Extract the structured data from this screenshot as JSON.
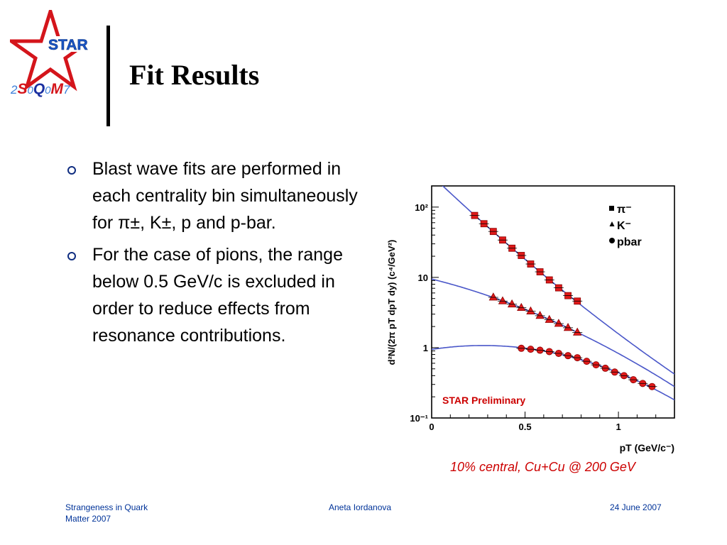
{
  "logo": {
    "star_text": "STAR",
    "conf_text_parts": [
      "2",
      "S",
      "0",
      "Q",
      "0",
      "M",
      "7"
    ]
  },
  "slide": {
    "title": "Fit Results"
  },
  "bullets": [
    "Blast wave fits are performed in each centrality bin simultaneously for π±, K±, p and p-bar.",
    "For the case of pions, the range below 0.5 GeV/c is excluded in order to reduce effects from resonance contributions."
  ],
  "chart_data": {
    "type": "scatter",
    "ylabel": "d²N/(2π pT dpT dy) (c⁴/GeV²)",
    "xlabel": "pT (GeV/c⁻)",
    "annotation": "STAR Preliminary",
    "xlim": [
      0,
      1.3
    ],
    "ylim": [
      0.1,
      200
    ],
    "yscale": "log",
    "x_ticks": [
      "0",
      "0.5",
      "1"
    ],
    "y_ticks": [
      "10²",
      "10",
      "1",
      "10⁻¹"
    ],
    "legend_position": "top-right",
    "series": [
      {
        "name": "π⁻",
        "marker": "square",
        "x": [
          0.23,
          0.28,
          0.33,
          0.38,
          0.43,
          0.48,
          0.53,
          0.58,
          0.63,
          0.68,
          0.73,
          0.78
        ],
        "y": [
          76,
          58,
          45,
          34,
          26,
          20.5,
          15.5,
          12,
          9.2,
          7.1,
          5.5,
          4.6
        ]
      },
      {
        "name": "K⁻",
        "marker": "triangle",
        "x": [
          0.33,
          0.38,
          0.43,
          0.48,
          0.53,
          0.58,
          0.63,
          0.68,
          0.73,
          0.78
        ],
        "y": [
          5.2,
          4.6,
          4.15,
          3.7,
          3.3,
          2.85,
          2.5,
          2.2,
          1.92,
          1.65
        ]
      },
      {
        "name": "pbar",
        "marker": "circle",
        "x": [
          0.48,
          0.53,
          0.58,
          0.63,
          0.68,
          0.73,
          0.78,
          0.83,
          0.88,
          0.93,
          0.98,
          1.03,
          1.08,
          1.13,
          1.18
        ],
        "y": [
          0.98,
          0.95,
          0.92,
          0.88,
          0.83,
          0.77,
          0.72,
          0.64,
          0.57,
          0.51,
          0.45,
          0.4,
          0.35,
          0.31,
          0.28
        ]
      }
    ]
  },
  "caption": {
    "text": "10% central, Cu+Cu @ 200 GeV"
  },
  "footer": {
    "left": [
      "Strangeness in Quark",
      "Matter 2007"
    ],
    "center": "Aneta Iordanova",
    "right": "24 June 2007"
  },
  "colors": {
    "marker": "#e01a1a",
    "fit": "#4a57c9",
    "accent": "#cc0000",
    "footer": "#003399",
    "logo_star": "#d4151b"
  }
}
